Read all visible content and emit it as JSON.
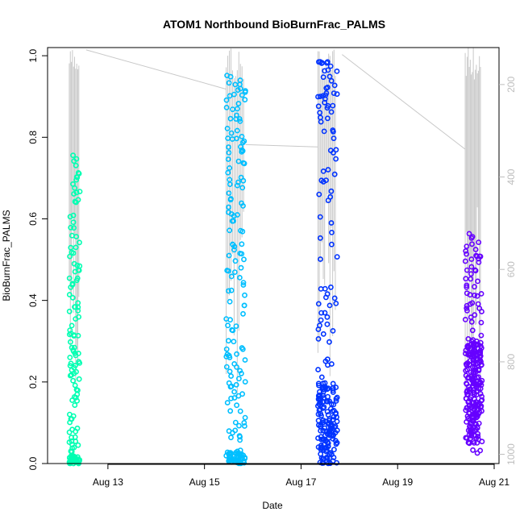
{
  "chart_data": {
    "type": "scatter",
    "title": "ATOM1 Northbound BioBurnFrac_PALMS",
    "xlabel": "Date",
    "ylabel": "BioBurnFrac_PALMS",
    "x_ticks": [
      "Aug 13",
      "Aug 15",
      "Aug 17",
      "Aug 19",
      "Aug 21"
    ],
    "y_ticks": [
      "0.0",
      "0.2",
      "0.4",
      "0.6",
      "0.8",
      "1.0"
    ],
    "y2_ticks": [
      "200",
      "400",
      "600",
      "800",
      "1000"
    ],
    "xlim_days": [
      11.75,
      21.1
    ],
    "ylim": [
      0.0,
      1.02
    ],
    "y2lim": [
      1020,
      120
    ],
    "y2_reversed": true,
    "grid": false,
    "colors": {
      "flight1": "#00FFB2",
      "flight2": "#00BFFF",
      "flight3": "#0033FF",
      "flight4": "#6600FF",
      "altitude": "#c8c8c8",
      "axis": "#000000",
      "right_axis": "#bdbdbd"
    },
    "flights": [
      {
        "date": "Aug 12",
        "day_start": 12.2,
        "day_end": 12.42,
        "min": 0.0,
        "max": 0.775,
        "color": "#00FFB2"
      },
      {
        "date": "Aug 15",
        "day_start": 15.45,
        "day_end": 15.85,
        "min": 0.0,
        "max": 0.96,
        "color": "#00BFFF"
      },
      {
        "date": "Aug 17",
        "day_start": 17.35,
        "day_end": 17.75,
        "min": 0.0,
        "max": 0.99,
        "color": "#0033FF"
      },
      {
        "date": "Aug 20",
        "day_start": 20.4,
        "day_end": 20.75,
        "min": 0.0,
        "max": 0.565,
        "color": "#6600FF"
      }
    ],
    "transit_lines": [
      {
        "x": [
          12.55,
          15.45
        ],
        "y_pressure": [
          125,
          210
        ]
      },
      {
        "x": [
          15.85,
          17.35
        ],
        "y_pressure": [
          330,
          335
        ]
      },
      {
        "x": [
          17.85,
          20.4
        ],
        "y_pressure": [
          135,
          340
        ]
      }
    ]
  }
}
